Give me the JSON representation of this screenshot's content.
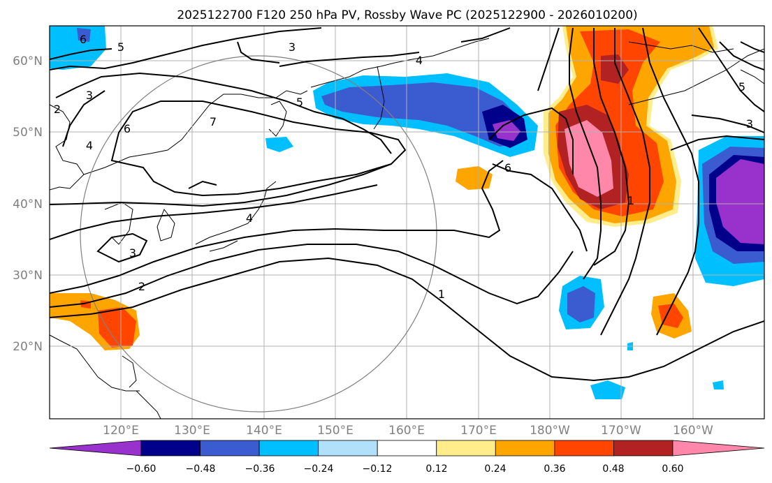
{
  "title": "2025122700 F120 250 hPa PV, Rossby Wave PC (2025122900 - 2026010200)",
  "axes": {
    "lat_labels": [
      "60°N",
      "50°N",
      "40°N",
      "30°N",
      "20°N"
    ],
    "lon_labels": [
      "120°E",
      "130°E",
      "140°E",
      "150°E",
      "160°E",
      "170°E",
      "180°W",
      "170°W",
      "160°W"
    ],
    "lat_range": [
      10,
      65
    ],
    "lon_range": [
      110,
      210
    ]
  },
  "colorbar": {
    "ticks": [
      "−0.60",
      "−0.48",
      "−0.36",
      "−0.24",
      "−0.12",
      "0.12",
      "0.24",
      "0.36",
      "0.48",
      "0.60"
    ],
    "colors": [
      "#9932cc",
      "#00008b",
      "#3b5bd0",
      "#00bfff",
      "#b0e0fa",
      "#ffffff",
      "#ffec8b",
      "#ffa500",
      "#ff4500",
      "#b22222",
      "#ff88aa"
    ]
  },
  "contour_labels": [
    "6",
    "5",
    "3",
    "4",
    "5",
    "7",
    "6",
    "2",
    "4",
    "3",
    "2",
    "3",
    "4",
    "6",
    "1",
    "1",
    "3",
    "5"
  ],
  "colors": {
    "grid": "#b0b0b0",
    "circle": "#808080"
  }
}
